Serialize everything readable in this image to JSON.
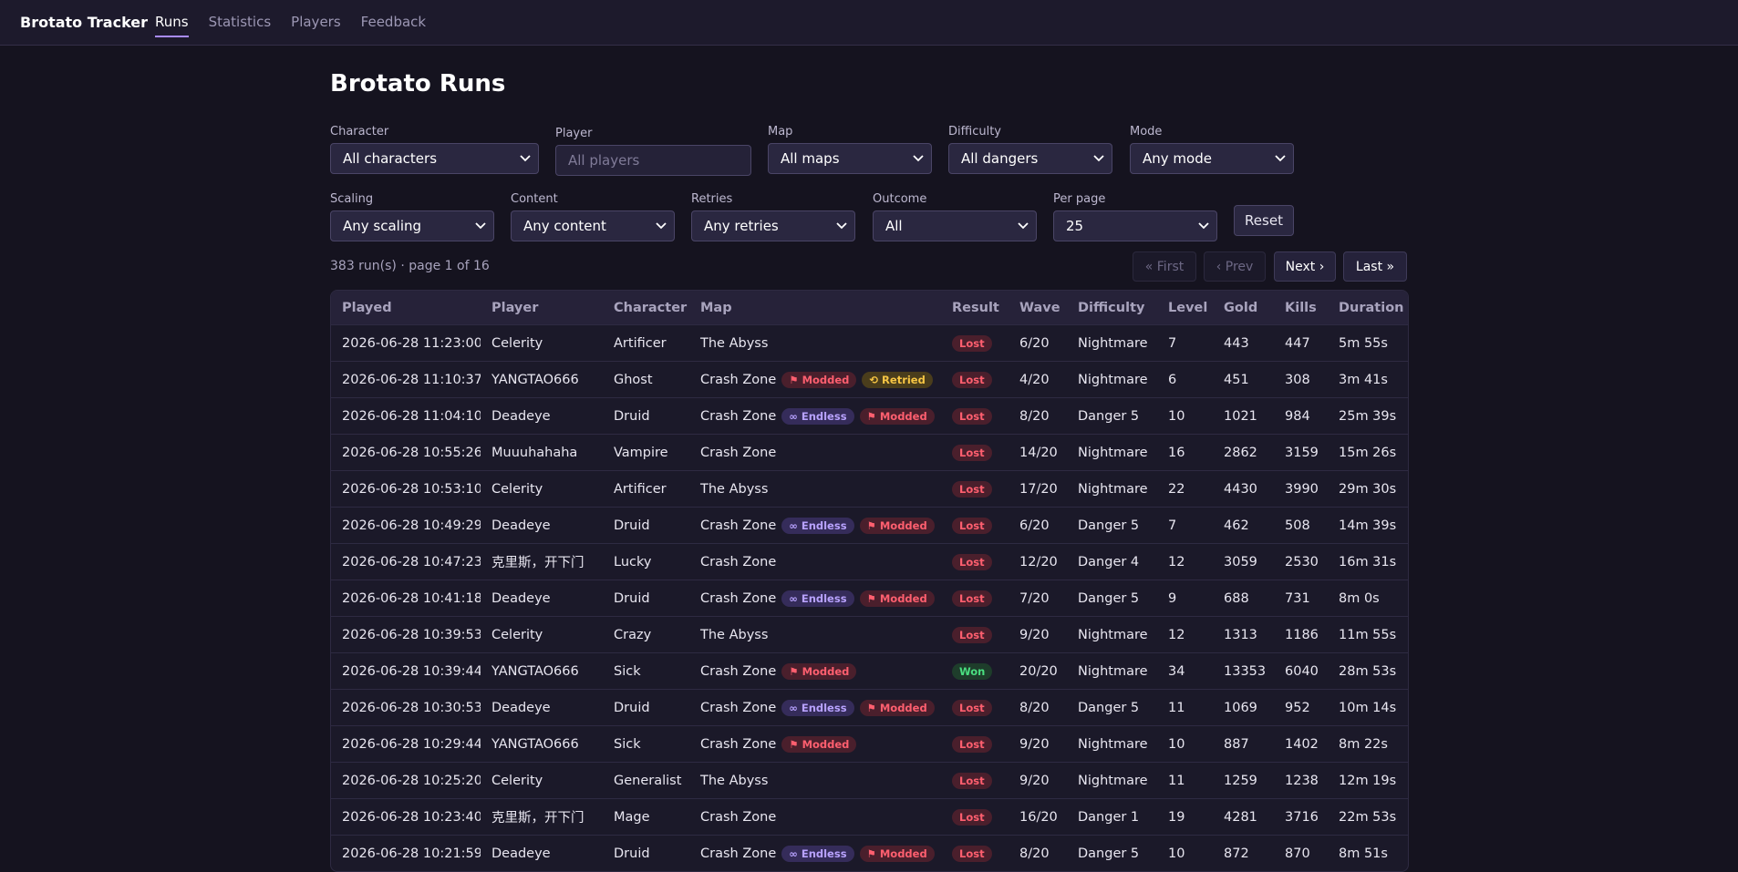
{
  "nav": {
    "brand": "Brotato Tracker",
    "links": [
      "Runs",
      "Statistics",
      "Players",
      "Feedback"
    ]
  },
  "header": {
    "title": "Brotato Runs"
  },
  "filters": [
    {
      "label": "Character",
      "value": "All characters"
    },
    {
      "label": "Player",
      "placeholder": "All players"
    },
    {
      "label": "Map",
      "value": "All maps"
    },
    {
      "label": "Difficulty",
      "value": "All dangers"
    },
    {
      "label": "Mode",
      "value": "Any mode"
    },
    {
      "label": "Scaling",
      "value": "Any scaling"
    },
    {
      "label": "Content",
      "value": "Any content"
    },
    {
      "label": "Retries",
      "value": "Any retries"
    },
    {
      "label": "Outcome",
      "value": "All"
    },
    {
      "label": "Per page",
      "value": "25"
    }
  ],
  "reset": "Reset",
  "summary": "383 run(s) · page 1 of 16",
  "pagination": [
    "« First",
    "‹ Prev",
    "Next ›",
    "Last »"
  ],
  "table": {
    "columns": [
      "Played",
      "Player",
      "Character",
      "Map",
      "Result",
      "Wave",
      "Difficulty",
      "Level",
      "Gold",
      "Kills",
      "Duration"
    ],
    "rows": [
      {
        "played": "2026-06-28 11:23:00",
        "player": "Celerity",
        "character": "Artificer",
        "map": "The Abyss",
        "tags": [],
        "result": "Lost",
        "wave": "6/20",
        "difficulty": "Nightmare",
        "level": 7,
        "gold": 443,
        "kills": 447,
        "duration": "5m 55s"
      },
      {
        "played": "2026-06-28 11:10:37",
        "player": "YANGTAO666",
        "character": "Ghost",
        "map": "Crash Zone",
        "tags": [
          "⚑ Modded",
          "⟲ Retried"
        ],
        "result": "Lost",
        "wave": "4/20",
        "difficulty": "Nightmare",
        "level": 6,
        "gold": 451,
        "kills": 308,
        "duration": "3m 41s"
      },
      {
        "played": "2026-06-28 11:04:10",
        "player": "Deadeye",
        "character": "Druid",
        "map": "Crash Zone",
        "tags": [
          "∞ Endless",
          "⚑ Modded"
        ],
        "result": "Lost",
        "wave": "8/20",
        "difficulty": "Danger 5",
        "level": 10,
        "gold": 1021,
        "kills": 984,
        "duration": "25m 39s"
      },
      {
        "played": "2026-06-28 10:55:26",
        "player": "Muuuhahaha",
        "character": "Vampire",
        "map": "Crash Zone",
        "tags": [],
        "result": "Lost",
        "wave": "14/20",
        "difficulty": "Nightmare",
        "level": 16,
        "gold": 2862,
        "kills": 3159,
        "duration": "15m 26s"
      },
      {
        "played": "2026-06-28 10:53:10",
        "player": "Celerity",
        "character": "Artificer",
        "map": "The Abyss",
        "tags": [],
        "result": "Lost",
        "wave": "17/20",
        "difficulty": "Nightmare",
        "level": 22,
        "gold": 4430,
        "kills": 3990,
        "duration": "29m 30s"
      },
      {
        "played": "2026-06-28 10:49:29",
        "player": "Deadeye",
        "character": "Druid",
        "map": "Crash Zone",
        "tags": [
          "∞ Endless",
          "⚑ Modded"
        ],
        "result": "Lost",
        "wave": "6/20",
        "difficulty": "Danger 5",
        "level": 7,
        "gold": 462,
        "kills": 508,
        "duration": "14m 39s"
      },
      {
        "played": "2026-06-28 10:47:23",
        "player": "克里斯，开下门",
        "character": "Lucky",
        "map": "Crash Zone",
        "tags": [],
        "result": "Lost",
        "wave": "12/20",
        "difficulty": "Danger 4",
        "level": 12,
        "gold": 3059,
        "kills": 2530,
        "duration": "16m 31s"
      },
      {
        "played": "2026-06-28 10:41:18",
        "player": "Deadeye",
        "character": "Druid",
        "map": "Crash Zone",
        "tags": [
          "∞ Endless",
          "⚑ Modded"
        ],
        "result": "Lost",
        "wave": "7/20",
        "difficulty": "Danger 5",
        "level": 9,
        "gold": 688,
        "kills": 731,
        "duration": "8m 0s"
      },
      {
        "played": "2026-06-28 10:39:53",
        "player": "Celerity",
        "character": "Crazy",
        "map": "The Abyss",
        "tags": [],
        "result": "Lost",
        "wave": "9/20",
        "difficulty": "Nightmare",
        "level": 12,
        "gold": 1313,
        "kills": 1186,
        "duration": "11m 55s"
      },
      {
        "played": "2026-06-28 10:39:44",
        "player": "YANGTAO666",
        "character": "Sick",
        "map": "Crash Zone",
        "tags": [
          "⚑ Modded"
        ],
        "result": "Won",
        "wave": "20/20",
        "difficulty": "Nightmare",
        "level": 34,
        "gold": 13353,
        "kills": 6040,
        "duration": "28m 53s"
      },
      {
        "played": "2026-06-28 10:30:53",
        "player": "Deadeye",
        "character": "Druid",
        "map": "Crash Zone",
        "tags": [
          "∞ Endless",
          "⚑ Modded"
        ],
        "result": "Lost",
        "wave": "8/20",
        "difficulty": "Danger 5",
        "level": 11,
        "gold": 1069,
        "kills": 952,
        "duration": "10m 14s"
      },
      {
        "played": "2026-06-28 10:29:44",
        "player": "YANGTAO666",
        "character": "Sick",
        "map": "Crash Zone",
        "tags": [
          "⚑ Modded"
        ],
        "result": "Lost",
        "wave": "9/20",
        "difficulty": "Nightmare",
        "level": 10,
        "gold": 887,
        "kills": 1402,
        "duration": "8m 22s"
      },
      {
        "played": "2026-06-28 10:25:20",
        "player": "Celerity",
        "character": "Generalist",
        "map": "The Abyss",
        "tags": [],
        "result": "Lost",
        "wave": "9/20",
        "difficulty": "Nightmare",
        "level": 11,
        "gold": 1259,
        "kills": 1238,
        "duration": "12m 19s"
      },
      {
        "played": "2026-06-28 10:23:40",
        "player": "克里斯，开下门",
        "character": "Mage",
        "map": "Crash Zone",
        "tags": [],
        "result": "Lost",
        "wave": "16/20",
        "difficulty": "Danger 1",
        "level": 19,
        "gold": 4281,
        "kills": 3716,
        "duration": "22m 53s"
      },
      {
        "played": "2026-06-28 10:21:59",
        "player": "Deadeye",
        "character": "Druid",
        "map": "Crash Zone",
        "tags": [
          "∞ Endless",
          "⚑ Modded"
        ],
        "result": "Lost",
        "wave": "8/20",
        "difficulty": "Danger 5",
        "level": 10,
        "gold": 872,
        "kills": 870,
        "duration": "8m 51s"
      }
    ]
  }
}
